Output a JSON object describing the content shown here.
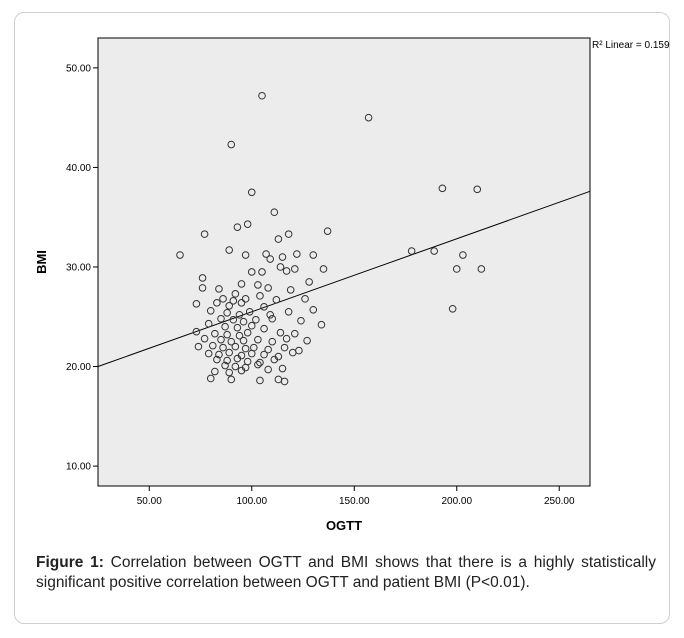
{
  "figure": {
    "caption_label": "Figure 1:",
    "caption_text": " Correlation between OGTT and BMI shows that there is a highly statistically significant positive correlation between OGTT and patient BMI (P<0.01)."
  },
  "chart_data": {
    "type": "scatter",
    "xlabel": "OGTT",
    "ylabel": "BMI",
    "xlim": [
      25,
      265
    ],
    "ylim": [
      8,
      53
    ],
    "x_ticks": [
      50,
      100,
      150,
      200,
      250
    ],
    "x_tick_labels": [
      "50.00",
      "100.00",
      "150.00",
      "200.00",
      "250.00"
    ],
    "y_ticks": [
      10,
      20,
      30,
      40,
      50
    ],
    "y_tick_labels": [
      "10.00",
      "20.00",
      "30.00",
      "40.00",
      "50.00"
    ],
    "fit_label": "R² Linear = 0.159",
    "fit_line": {
      "x1": 25,
      "y1": 20.0,
      "x2": 265,
      "y2": 37.6
    },
    "grid": false,
    "background": "#ececec",
    "marker_color": "#333333",
    "points": [
      [
        105,
        47.2
      ],
      [
        157,
        45.0
      ],
      [
        90,
        42.3
      ],
      [
        193,
        37.9
      ],
      [
        210,
        37.8
      ],
      [
        100,
        37.5
      ],
      [
        111,
        35.5
      ],
      [
        93,
        34.0
      ],
      [
        98,
        34.3
      ],
      [
        77,
        33.3
      ],
      [
        118,
        33.3
      ],
      [
        137,
        33.6
      ],
      [
        113,
        32.8
      ],
      [
        89,
        31.7
      ],
      [
        178,
        31.6
      ],
      [
        189,
        31.6
      ],
      [
        65,
        31.2
      ],
      [
        97,
        31.2
      ],
      [
        107,
        31.3
      ],
      [
        115,
        31.0
      ],
      [
        122,
        31.3
      ],
      [
        130,
        31.2
      ],
      [
        203,
        31.2
      ],
      [
        109,
        30.8
      ],
      [
        114,
        30.0
      ],
      [
        121,
        29.8
      ],
      [
        135,
        29.8
      ],
      [
        200,
        29.8
      ],
      [
        212,
        29.8
      ],
      [
        100,
        29.5
      ],
      [
        105,
        29.5
      ],
      [
        117,
        29.6
      ],
      [
        76,
        28.9
      ],
      [
        95,
        28.3
      ],
      [
        103,
        28.2
      ],
      [
        128,
        28.5
      ],
      [
        76,
        27.9
      ],
      [
        84,
        27.8
      ],
      [
        92,
        27.3
      ],
      [
        108,
        27.9
      ],
      [
        119,
        27.7
      ],
      [
        86,
        26.8
      ],
      [
        91,
        26.6
      ],
      [
        97,
        26.8
      ],
      [
        104,
        27.1
      ],
      [
        112,
        26.7
      ],
      [
        126,
        26.8
      ],
      [
        73,
        26.3
      ],
      [
        83,
        26.4
      ],
      [
        89,
        26.1
      ],
      [
        95,
        26.4
      ],
      [
        106,
        26.0
      ],
      [
        198,
        25.8
      ],
      [
        80,
        25.6
      ],
      [
        88,
        25.4
      ],
      [
        94,
        25.2
      ],
      [
        99,
        25.5
      ],
      [
        109,
        25.2
      ],
      [
        118,
        25.5
      ],
      [
        130,
        25.7
      ],
      [
        85,
        24.8
      ],
      [
        91,
        24.7
      ],
      [
        96,
        24.5
      ],
      [
        102,
        24.7
      ],
      [
        110,
        24.8
      ],
      [
        124,
        24.6
      ],
      [
        79,
        24.3
      ],
      [
        87,
        24.0
      ],
      [
        93,
        23.9
      ],
      [
        100,
        24.1
      ],
      [
        106,
        23.8
      ],
      [
        134,
        24.2
      ],
      [
        73,
        23.5
      ],
      [
        82,
        23.3
      ],
      [
        88,
        23.2
      ],
      [
        94,
        23.1
      ],
      [
        98,
        23.4
      ],
      [
        114,
        23.4
      ],
      [
        121,
        23.3
      ],
      [
        77,
        22.8
      ],
      [
        85,
        22.7
      ],
      [
        90,
        22.5
      ],
      [
        96,
        22.6
      ],
      [
        103,
        22.7
      ],
      [
        110,
        22.5
      ],
      [
        117,
        22.8
      ],
      [
        127,
        22.6
      ],
      [
        74,
        22.0
      ],
      [
        81,
        22.1
      ],
      [
        86,
        21.9
      ],
      [
        92,
        22.0
      ],
      [
        97,
        21.8
      ],
      [
        101,
        21.9
      ],
      [
        108,
        21.7
      ],
      [
        116,
        21.9
      ],
      [
        123,
        21.6
      ],
      [
        79,
        21.3
      ],
      [
        84,
        21.2
      ],
      [
        89,
        21.4
      ],
      [
        95,
        21.1
      ],
      [
        100,
        21.3
      ],
      [
        106,
        21.2
      ],
      [
        113,
        21.0
      ],
      [
        120,
        21.4
      ],
      [
        83,
        20.7
      ],
      [
        88,
        20.6
      ],
      [
        93,
        20.8
      ],
      [
        98,
        20.5
      ],
      [
        104,
        20.4
      ],
      [
        111,
        20.7
      ],
      [
        87,
        20.1
      ],
      [
        92,
        20.0
      ],
      [
        97,
        19.9
      ],
      [
        103,
        20.2
      ],
      [
        115,
        19.8
      ],
      [
        82,
        19.5
      ],
      [
        89,
        19.4
      ],
      [
        95,
        19.6
      ],
      [
        108,
        19.7
      ],
      [
        80,
        18.8
      ],
      [
        90,
        18.7
      ],
      [
        104,
        18.6
      ],
      [
        113,
        18.7
      ],
      [
        116,
        18.5
      ]
    ]
  }
}
